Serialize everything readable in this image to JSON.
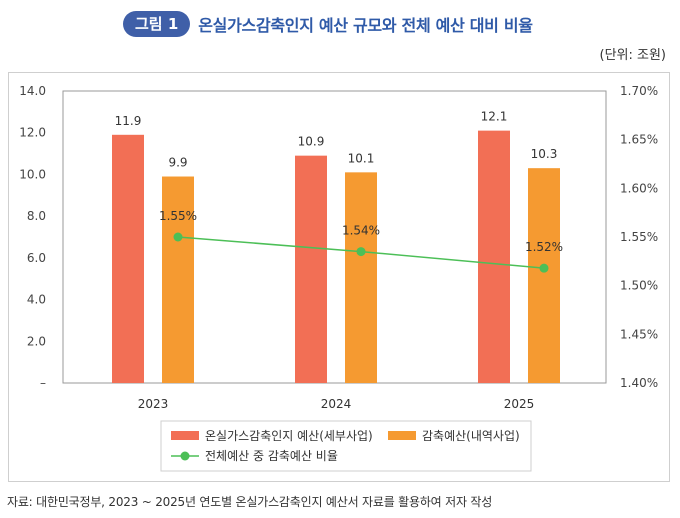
{
  "header": {
    "figure_label": "그림 1",
    "title": "온실가스감축인지 예산 규모와 전체 예산 대비 비율"
  },
  "unit_label": "(단위: 조원)",
  "source": "자료: 대한민국정부, 2023 ~ 2025년 연도별 온실가스감축인지 예산서 자료를 활용하여 저자 작성",
  "colors": {
    "bar1": "#f26f55",
    "bar2": "#f59a31",
    "line": "#4cbf57",
    "grid": "#e6e6e6",
    "axis": "#999999",
    "frame": "#cfcfcf",
    "title": "#2f5aa8",
    "badge": "#3f5fa8"
  },
  "chart_data": {
    "type": "bar",
    "categories": [
      "2023",
      "2024",
      "2025"
    ],
    "series": [
      {
        "name": "온실가스감축인지 예산(세부사업)",
        "values": [
          11.9,
          10.9,
          12.1
        ],
        "labels": [
          "11.9",
          "10.9",
          "12.1"
        ],
        "axis": "left"
      },
      {
        "name": "감축예산(내역사업)",
        "values": [
          9.9,
          10.1,
          10.3
        ],
        "labels": [
          "9.9",
          "10.1",
          "10.3"
        ],
        "axis": "left"
      },
      {
        "name": "전체예산 중 감축예산 비율",
        "type": "line",
        "values": [
          1.55,
          1.535,
          1.518
        ],
        "labels": [
          "1.55%",
          "1.54%",
          "1.52%"
        ],
        "axis": "right"
      }
    ],
    "y_left": {
      "min": 0,
      "max": 14,
      "ticks": [
        0,
        2,
        4,
        6,
        8,
        10,
        12,
        14
      ],
      "tick_labels": [
        "–",
        "2.0",
        "4.0",
        "6.0",
        "8.0",
        "10.0",
        "12.0",
        "14.0"
      ]
    },
    "y_right": {
      "min": 1.4,
      "max": 1.7,
      "ticks": [
        1.4,
        1.45,
        1.5,
        1.55,
        1.6,
        1.65,
        1.7
      ],
      "tick_labels": [
        "1.40%",
        "1.45%",
        "1.50%",
        "1.55%",
        "1.60%",
        "1.65%",
        "1.70%"
      ]
    },
    "grid": false,
    "legend_position": "bottom"
  }
}
